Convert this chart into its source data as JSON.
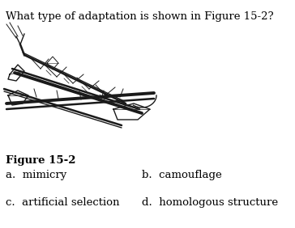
{
  "title": "What type of adaptation is shown in Figure 15-2?",
  "figure_label": "Figure 15-2",
  "options": [
    [
      "a.  mimicry",
      "b.  camouflage"
    ],
    [
      "c.  artificial selection",
      "d.  homologous structure"
    ]
  ],
  "bg_color": "#ffffff",
  "text_color": "#000000",
  "title_fontsize": 9.5,
  "label_fontsize": 9.5,
  "option_fontsize": 9.5
}
